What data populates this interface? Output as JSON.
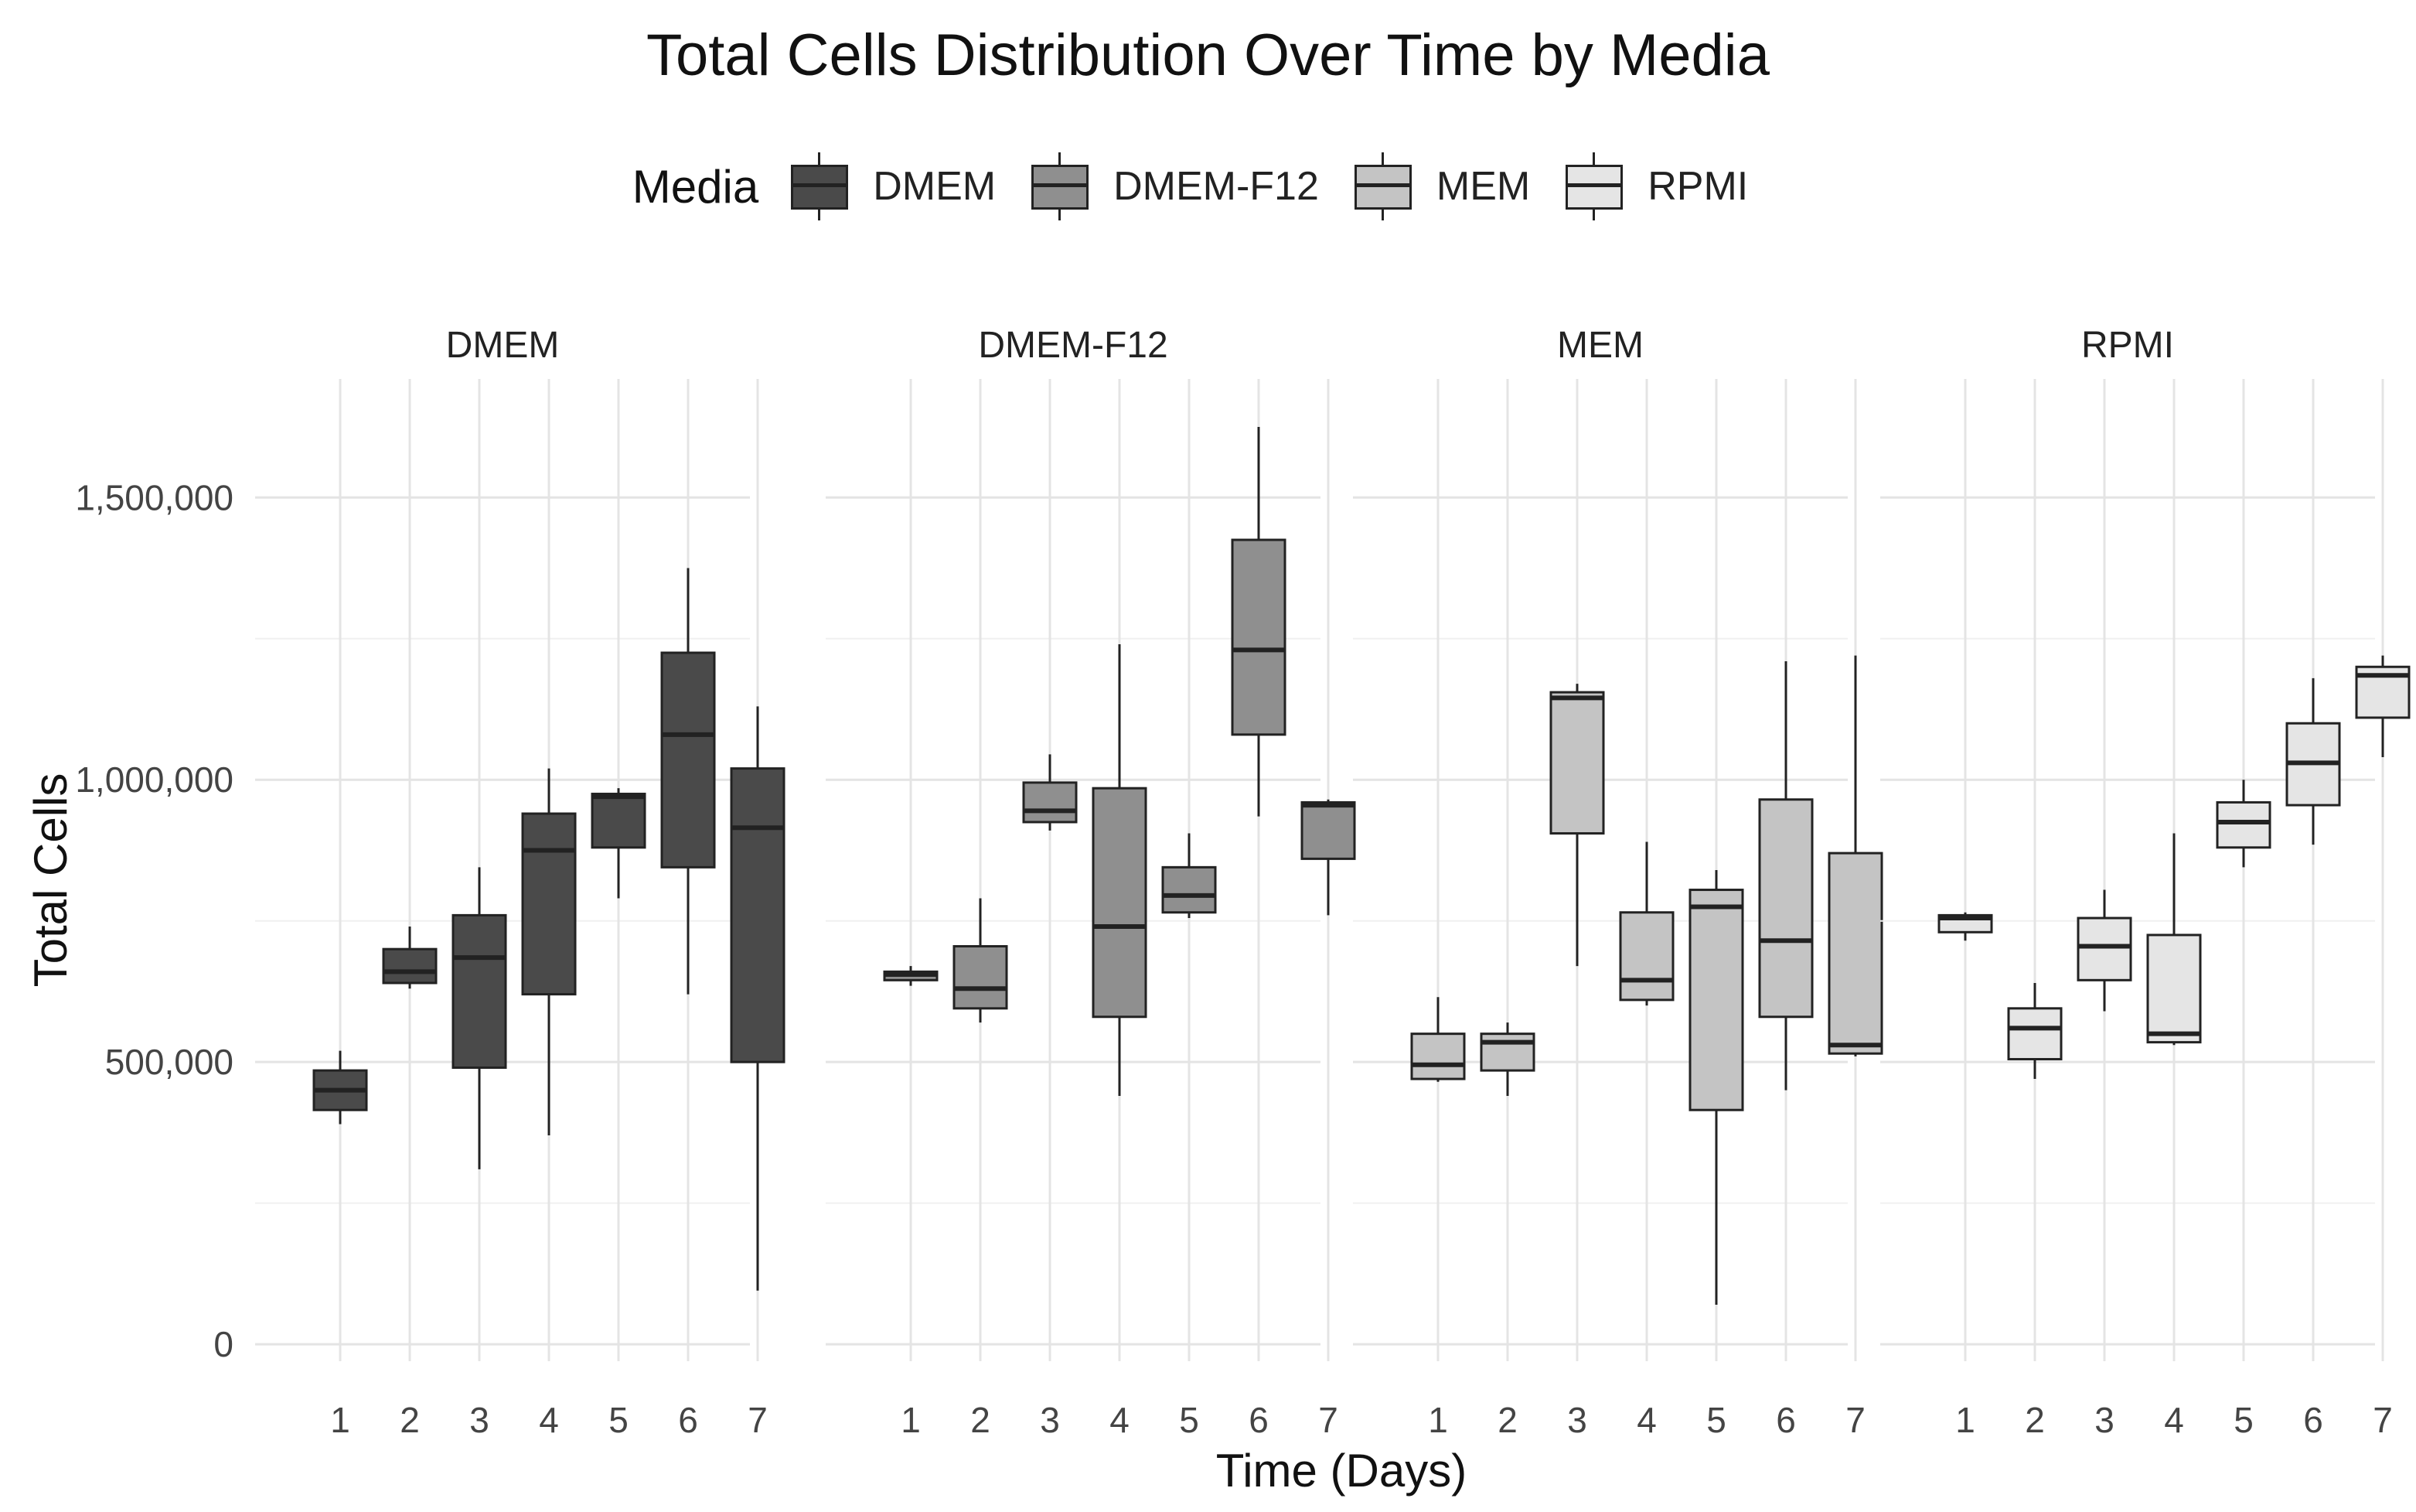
{
  "chart_data": {
    "type": "box",
    "title": "Total Cells Distribution Over Time by Media",
    "xlabel": "Time (Days)",
    "ylabel": "Total Cells",
    "ylim": [
      -30000,
      1710000
    ],
    "y_ticks": [
      0,
      500000,
      1000000,
      1500000
    ],
    "y_tick_labels": [
      "0",
      "500,000",
      "1,000,000",
      "1,500,000"
    ],
    "x_categories": [
      "1",
      "2",
      "3",
      "4",
      "5",
      "6",
      "7"
    ],
    "grid": true,
    "legend": {
      "title": "Media",
      "position": "top",
      "entries": [
        {
          "name": "DMEM",
          "color": "#4a4a4a"
        },
        {
          "name": "DMEM-F12",
          "color": "#8f8f8f"
        },
        {
          "name": "MEM",
          "color": "#c4c4c4"
        },
        {
          "name": "RPMI",
          "color": "#e5e5e5"
        }
      ]
    },
    "panels": [
      {
        "name": "DMEM",
        "fill": "#4a4a4a",
        "boxes": [
          {
            "x": "1",
            "min": 390000,
            "q1": 415000,
            "median": 450000,
            "q3": 485000,
            "max": 520000
          },
          {
            "x": "2",
            "min": 630000,
            "q1": 640000,
            "median": 660000,
            "q3": 700000,
            "max": 740000
          },
          {
            "x": "3",
            "min": 310000,
            "q1": 490000,
            "median": 685000,
            "q3": 760000,
            "max": 845000
          },
          {
            "x": "4",
            "min": 370000,
            "q1": 620000,
            "median": 875000,
            "q3": 940000,
            "max": 1020000
          },
          {
            "x": "5",
            "min": 790000,
            "q1": 880000,
            "median": 970000,
            "q3": 975000,
            "max": 985000
          },
          {
            "x": "6",
            "min": 620000,
            "q1": 845000,
            "median": 1080000,
            "q3": 1225000,
            "max": 1375000
          },
          {
            "x": "7",
            "min": 95000,
            "q1": 500000,
            "median": 915000,
            "q3": 1020000,
            "max": 1130000
          }
        ]
      },
      {
        "name": "DMEM-F12",
        "fill": "#8f8f8f",
        "boxes": [
          {
            "x": "1",
            "min": 635000,
            "q1": 645000,
            "median": 655000,
            "q3": 660000,
            "max": 670000
          },
          {
            "x": "2",
            "min": 570000,
            "q1": 595000,
            "median": 630000,
            "q3": 705000,
            "max": 790000
          },
          {
            "x": "3",
            "min": 910000,
            "q1": 925000,
            "median": 945000,
            "q3": 995000,
            "max": 1045000
          },
          {
            "x": "4",
            "min": 440000,
            "q1": 580000,
            "median": 740000,
            "q3": 985000,
            "max": 1240000
          },
          {
            "x": "5",
            "min": 755000,
            "q1": 765000,
            "median": 795000,
            "q3": 845000,
            "max": 905000
          },
          {
            "x": "6",
            "min": 935000,
            "q1": 1080000,
            "median": 1230000,
            "q3": 1425000,
            "max": 1625000
          },
          {
            "x": "7",
            "min": 760000,
            "q1": 860000,
            "median": 955000,
            "q3": 960000,
            "max": 965000
          }
        ]
      },
      {
        "name": "MEM",
        "fill": "#c4c4c4",
        "boxes": [
          {
            "x": "1",
            "min": 465000,
            "q1": 470000,
            "median": 495000,
            "q3": 550000,
            "max": 615000
          },
          {
            "x": "2",
            "min": 440000,
            "q1": 485000,
            "median": 535000,
            "q3": 550000,
            "max": 570000
          },
          {
            "x": "3",
            "min": 670000,
            "q1": 905000,
            "median": 1145000,
            "q3": 1155000,
            "max": 1170000
          },
          {
            "x": "4",
            "min": 600000,
            "q1": 610000,
            "median": 645000,
            "q3": 765000,
            "max": 890000
          },
          {
            "x": "5",
            "min": 70000,
            "q1": 415000,
            "median": 775000,
            "q3": 805000,
            "max": 840000
          },
          {
            "x": "6",
            "min": 450000,
            "q1": 580000,
            "median": 715000,
            "q3": 965000,
            "max": 1210000
          },
          {
            "x": "7",
            "min": 510000,
            "q1": 515000,
            "median": 530000,
            "q3": 870000,
            "max": 1220000
          }
        ]
      },
      {
        "name": "RPMI",
        "fill": "#e5e5e5",
        "boxes": [
          {
            "x": "1",
            "min": 715000,
            "q1": 730000,
            "median": 755000,
            "q3": 760000,
            "max": 765000
          },
          {
            "x": "2",
            "min": 470000,
            "q1": 505000,
            "median": 560000,
            "q3": 595000,
            "max": 640000
          },
          {
            "x": "3",
            "min": 590000,
            "q1": 645000,
            "median": 705000,
            "q3": 755000,
            "max": 805000
          },
          {
            "x": "4",
            "min": 530000,
            "q1": 535000,
            "median": 550000,
            "q3": 725000,
            "max": 905000
          },
          {
            "x": "5",
            "min": 845000,
            "q1": 880000,
            "median": 925000,
            "q3": 960000,
            "max": 1000000
          },
          {
            "x": "6",
            "min": 885000,
            "q1": 955000,
            "median": 1030000,
            "q3": 1100000,
            "max": 1180000
          },
          {
            "x": "7",
            "min": 1040000,
            "q1": 1110000,
            "median": 1185000,
            "q3": 1200000,
            "max": 1220000
          }
        ]
      }
    ]
  }
}
